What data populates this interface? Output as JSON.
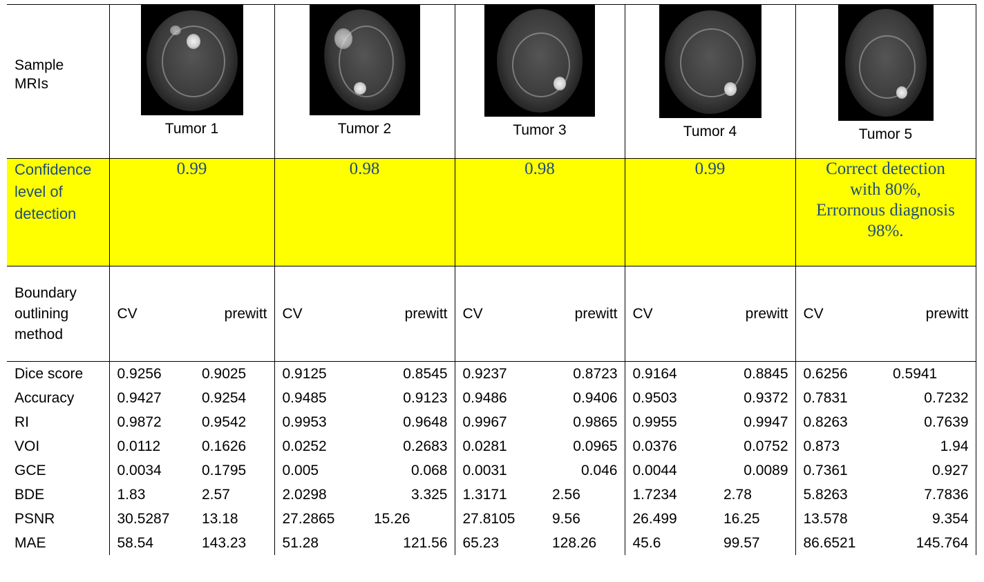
{
  "row_labels": {
    "sample": "Sample MRIs",
    "confidence": "Confidence level of detection",
    "method": "Boundary outlining method"
  },
  "tumors": [
    {
      "label": "Tumor 1",
      "confidence": "0.99"
    },
    {
      "label": "Tumor 2",
      "confidence": "0.98"
    },
    {
      "label": "Tumor 3",
      "confidence": "0.98"
    },
    {
      "label": "Tumor 4",
      "confidence": "0.99"
    },
    {
      "label": "Tumor 5",
      "confidence": "Correct detection with 80%, Errornous diagnosis 98%."
    }
  ],
  "methods": [
    "CV",
    "prewitt"
  ],
  "metrics": [
    {
      "name": "Dice score",
      "values": [
        "0.9256",
        "0.9025",
        "0.9125",
        "0.8545",
        "0.9237",
        "0.8723",
        "0.9164",
        "0.8845",
        "0.6256",
        "0.5941"
      ]
    },
    {
      "name": "Accuracy",
      "values": [
        "0.9427",
        "0.9254",
        "0.9485",
        "0.9123",
        "0.9486",
        "0.9406",
        "0.9503",
        "0.9372",
        "0.7831",
        "0.7232"
      ]
    },
    {
      "name": "RI",
      "values": [
        "0.9872",
        "0.9542",
        "0.9953",
        "0.9648",
        "0.9967",
        "0.9865",
        "0.9955",
        "0.9947",
        "0.8263",
        "0.7639"
      ]
    },
    {
      "name": "VOI",
      "values": [
        "0.0112",
        "0.1626",
        "0.0252",
        "0.2683",
        "0.0281",
        "0.0965",
        "0.0376",
        "0.0752",
        "0.873",
        "1.94"
      ]
    },
    {
      "name": "GCE",
      "values": [
        "0.0034",
        "0.1795",
        "0.005",
        "0.068",
        "0.0031",
        "0.046",
        "0.0044",
        "0.0089",
        "0.7361",
        "0.927"
      ]
    },
    {
      "name": "BDE",
      "values": [
        "1.83",
        "2.57",
        "2.0298",
        "3.325",
        "1.3171",
        "2.56",
        "1.7234",
        "2.78",
        "5.8263",
        "7.7836"
      ]
    },
    {
      "name": "PSNR",
      "values": [
        "30.5287",
        "13.18",
        "27.2865",
        "15.26",
        "27.8105",
        "9.56",
        "26.499",
        "16.25",
        "13.578",
        "9.354"
      ]
    },
    {
      "name": "MAE",
      "values": [
        "58.54",
        "143.23",
        "51.28",
        "121.56",
        "65.23",
        "128.26",
        "45.6",
        "99.57",
        "86.6521",
        "145.764"
      ]
    }
  ]
}
